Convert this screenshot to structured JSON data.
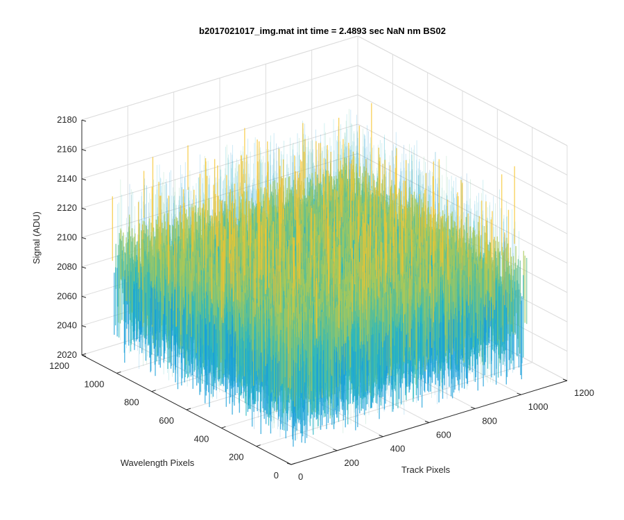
{
  "chart_data": {
    "type": "surface",
    "title": "b2017021017_img.mat int time = 2.4893 sec  NaN nm BS02",
    "xlabel": "Track Pixels",
    "ylabel": "Wavelength Pixels",
    "zlabel": "Signal (ADU)",
    "xlim": [
      0,
      1200
    ],
    "ylim": [
      0,
      1200
    ],
    "zlim": [
      2020,
      2180
    ],
    "x_ticks": [
      "0",
      "200",
      "400",
      "600",
      "800",
      "1000",
      "1200"
    ],
    "y_ticks": [
      "0",
      "200",
      "400",
      "600",
      "800",
      "1000",
      "1200"
    ],
    "z_ticks": [
      "2020",
      "2040",
      "2060",
      "2080",
      "2100",
      "2120",
      "2140",
      "2160",
      "2180"
    ],
    "grid": true,
    "colormap": "parula",
    "colors": [
      "#0072bd",
      "#1a9fd9",
      "#2ab7c2",
      "#64c08e",
      "#a8c85a",
      "#e3bb3a",
      "#f5c42e"
    ],
    "surface": {
      "x_extent": [
        0,
        1024
      ],
      "y_extent": [
        0,
        1024
      ],
      "mean_signal": 2095,
      "noise_range": [
        2030,
        2170
      ]
    }
  }
}
